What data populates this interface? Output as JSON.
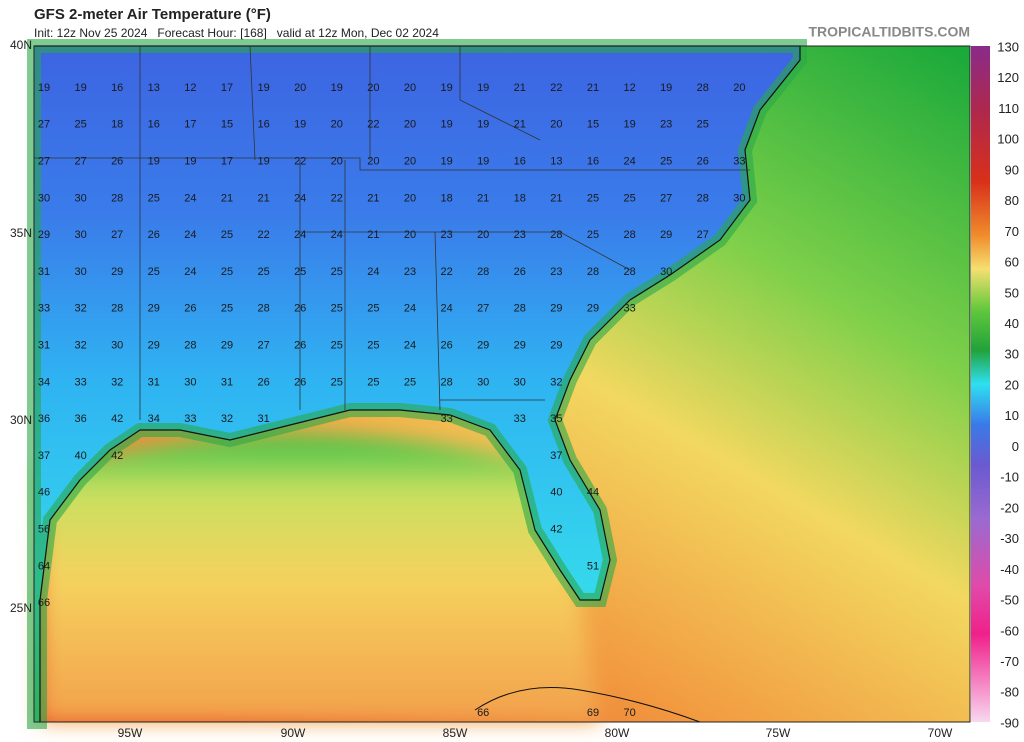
{
  "header": {
    "title": "GFS 2-meter Air Temperature (°F)",
    "subtitle": "Init: 12z Nov 25 2024   Forecast Hour: [168]   valid at 12z Mon, Dec 02 2024",
    "brand": "TROPICALTIDBITS.COM"
  },
  "axes": {
    "lat_labels": [
      "40N",
      "35N",
      "30N",
      "25N"
    ],
    "lon_labels": [
      "95W",
      "90W",
      "85W",
      "80W",
      "75W",
      "70W"
    ]
  },
  "colorbar": {
    "labels": [
      130,
      120,
      110,
      100,
      90,
      80,
      70,
      60,
      50,
      40,
      30,
      20,
      10,
      0,
      -10,
      -20,
      -30,
      -40,
      -50,
      -60,
      -70,
      -80,
      -90
    ]
  },
  "map": {
    "rows": [
      [
        19,
        19,
        16,
        13,
        12,
        17,
        19,
        20,
        19,
        20,
        20,
        19,
        19,
        21,
        22,
        21,
        12,
        19,
        28,
        20
      ],
      [
        27,
        25,
        18,
        16,
        17,
        15,
        16,
        19,
        20,
        22,
        20,
        19,
        19,
        21,
        20,
        15,
        19,
        23,
        25
      ],
      [
        27,
        27,
        26,
        19,
        19,
        17,
        19,
        22,
        20,
        20,
        20,
        19,
        19,
        16,
        13,
        16,
        24,
        25,
        26,
        33
      ],
      [
        30,
        30,
        28,
        25,
        24,
        21,
        21,
        24,
        22,
        21,
        20,
        18,
        21,
        18,
        21,
        25,
        25,
        27,
        28,
        30
      ],
      [
        29,
        30,
        27,
        26,
        24,
        25,
        22,
        24,
        24,
        21,
        20,
        23,
        20,
        23,
        28,
        25,
        28,
        29,
        27
      ],
      [
        31,
        30,
        29,
        25,
        24,
        25,
        25,
        25,
        25,
        24,
        23,
        22,
        28,
        26,
        23,
        28,
        28,
        30
      ],
      [
        33,
        32,
        28,
        29,
        26,
        25,
        28,
        26,
        25,
        25,
        24,
        24,
        27,
        28,
        29,
        29,
        33
      ],
      [
        31,
        32,
        30,
        29,
        28,
        29,
        27,
        26,
        25,
        25,
        24,
        26,
        29,
        29,
        29
      ],
      [
        34,
        33,
        32,
        31,
        30,
        31,
        26,
        26,
        25,
        25,
        25,
        28,
        30,
        30,
        32
      ],
      [
        36,
        36,
        42,
        34,
        33,
        32,
        31,
        null,
        null,
        null,
        null,
        33,
        null,
        33,
        35
      ],
      [
        37,
        40,
        42,
        null,
        null,
        null,
        null,
        null,
        null,
        null,
        null,
        null,
        null,
        null,
        37
      ],
      [
        46,
        null,
        null,
        null,
        null,
        null,
        null,
        null,
        null,
        null,
        null,
        null,
        null,
        null,
        40,
        44
      ],
      [
        56,
        null,
        null,
        null,
        null,
        null,
        null,
        null,
        null,
        null,
        null,
        null,
        null,
        null,
        42
      ],
      [
        64,
        null,
        null,
        null,
        null,
        null,
        null,
        null,
        null,
        null,
        null,
        null,
        null,
        null,
        null,
        51
      ],
      [
        66
      ]
    ],
    "bottom_row": [
      null,
      null,
      null,
      null,
      null,
      null,
      null,
      null,
      null,
      null,
      null,
      null,
      66,
      null,
      null,
      69,
      70
    ]
  }
}
